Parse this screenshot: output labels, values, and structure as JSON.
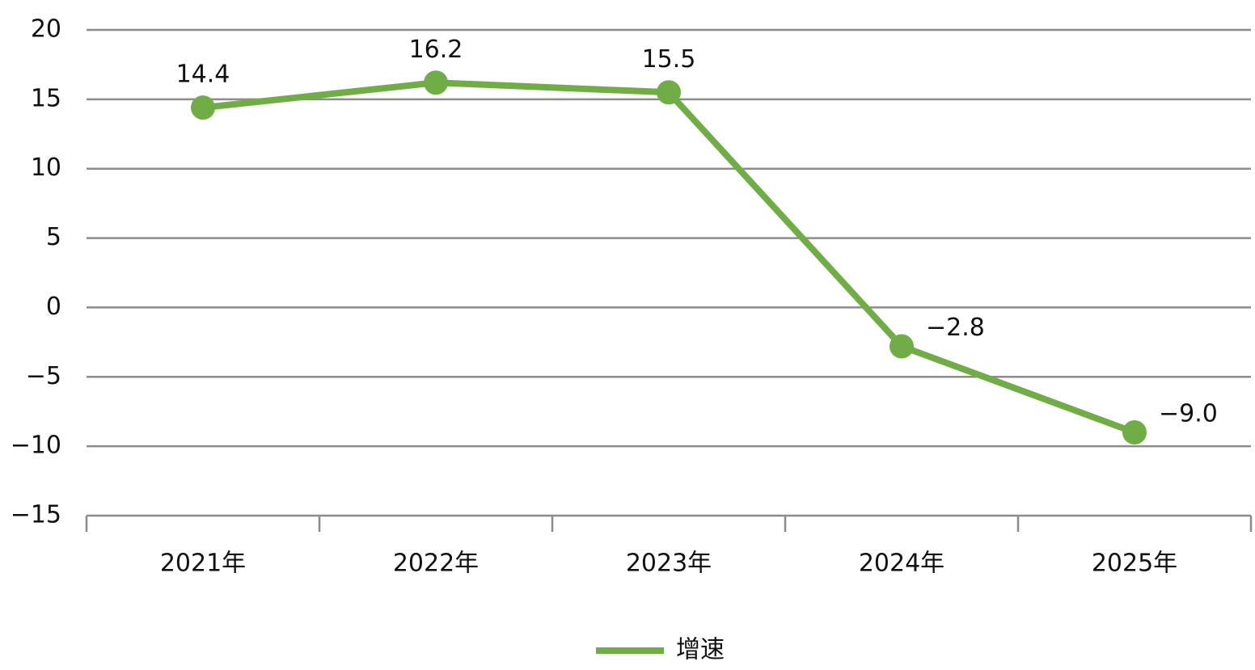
{
  "chart_data": {
    "type": "line",
    "categories": [
      "2021年",
      "2022年",
      "2023年",
      "2024年",
      "2025年"
    ],
    "series": [
      {
        "name": "增速",
        "color": "#70ad47",
        "values": [
          14.4,
          16.2,
          15.5,
          -2.8,
          -9.0
        ],
        "value_labels": [
          "14.4",
          "16.2",
          "15.5",
          "−2.8",
          "−9.0"
        ]
      }
    ],
    "ylim": [
      -15,
      20
    ],
    "yticks": [
      {
        "value": -15,
        "label": "−15"
      },
      {
        "value": -10,
        "label": "−10"
      },
      {
        "value": -5,
        "label": "−5"
      },
      0,
      5,
      10,
      15,
      20
    ],
    "grid": true,
    "legend": "bottom"
  }
}
